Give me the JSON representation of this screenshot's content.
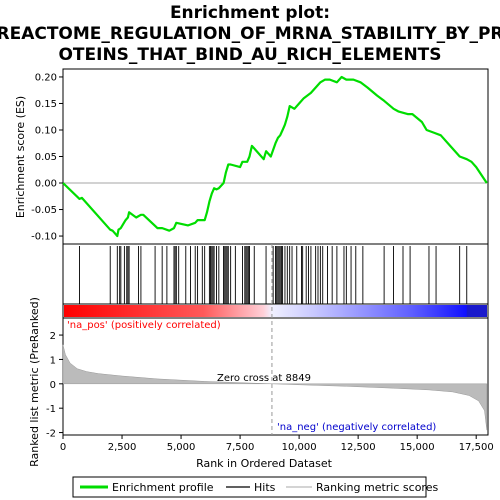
{
  "chart_data": {
    "type": "line",
    "title_lines": [
      "Enrichment plot:",
      "REACTOME_REGULATION_OF_MRNA_STABILITY_BY_PR",
      "OTEINS_THAT_BIND_AU_RICH_ELEMENTS"
    ],
    "xlabel": "Rank in Ordered Dataset",
    "ylabel_top": "Enrichment score (ES)",
    "ylabel_bottom": "Ranked list metric (PreRanked)",
    "xlim": [
      0,
      18000
    ],
    "ylim_es": [
      -0.115,
      0.215
    ],
    "ylim_metric": [
      -2.1,
      2.7
    ],
    "x_ticks": [
      0,
      2500,
      5000,
      7500,
      10000,
      12500,
      15000,
      17500
    ],
    "x_tick_labels": [
      "0",
      "2,500",
      "5,000",
      "7,500",
      "10,000",
      "12,500",
      "15,000",
      "17,500"
    ],
    "es_ticks": [
      -0.1,
      -0.05,
      0.0,
      0.05,
      0.1,
      0.15,
      0.2
    ],
    "es_tick_labels": [
      "-0.10",
      "-0.05",
      "0.00",
      "0.05",
      "0.10",
      "0.15",
      "0.20"
    ],
    "metric_ticks": [
      -2,
      -1,
      0,
      1,
      2
    ],
    "metric_tick_labels": [
      "-2",
      "-1",
      "0",
      "1",
      "2"
    ],
    "zero_cross_rank": 8849,
    "zero_cross_label": "Zero cross at 8849",
    "pos_label": "'na_pos' (positively correlated)",
    "neg_label": "'na_neg' (negatively correlated)",
    "legend": [
      "Enrichment profile",
      "Hits",
      "Ranking metric scores"
    ],
    "colors": {
      "profile": "#00dd00",
      "hits": "#000000",
      "metric_fill": "#bbbbbb",
      "pos_text": "#ff0000",
      "neg_text": "#0000cc",
      "zero_line": "#999999",
      "bar_pos": "#ff0000",
      "bar_neg": "#0000ff"
    },
    "series": [
      {
        "name": "Enrichment profile",
        "x": [
          0,
          700,
          800,
          2000,
          2100,
          2300,
          2350,
          2450,
          2650,
          2750,
          2800,
          3100,
          3300,
          3400,
          4000,
          4200,
          4500,
          4700,
          4800,
          5300,
          5600,
          5700,
          6000,
          6100,
          6200,
          6300,
          6400,
          6500,
          6600,
          6800,
          6900,
          7000,
          7100,
          7500,
          7600,
          7800,
          7900,
          8000,
          8100,
          8500,
          8600,
          8800,
          9000,
          9100,
          9200,
          9300,
          9400,
          9500,
          9600,
          9800,
          10000,
          10200,
          10500,
          10700,
          10900,
          11100,
          11300,
          11600,
          11800,
          12000,
          12300,
          12600,
          12900,
          13300,
          13600,
          14000,
          14200,
          14600,
          14800,
          15200,
          15400,
          15700,
          16000,
          16400,
          16800,
          17100,
          17300,
          17500,
          17950
        ],
        "es": [
          0.0,
          -0.03,
          -0.028,
          -0.088,
          -0.09,
          -0.1,
          -0.088,
          -0.085,
          -0.07,
          -0.065,
          -0.055,
          -0.065,
          -0.06,
          -0.06,
          -0.085,
          -0.085,
          -0.09,
          -0.085,
          -0.075,
          -0.08,
          -0.075,
          -0.07,
          -0.07,
          -0.055,
          -0.035,
          -0.02,
          -0.01,
          -0.012,
          -0.01,
          0.0,
          0.02,
          0.035,
          0.035,
          0.03,
          0.04,
          0.04,
          0.05,
          0.07,
          0.065,
          0.045,
          0.06,
          0.05,
          0.075,
          0.085,
          0.09,
          0.1,
          0.11,
          0.125,
          0.145,
          0.14,
          0.15,
          0.16,
          0.17,
          0.18,
          0.19,
          0.195,
          0.195,
          0.19,
          0.2,
          0.195,
          0.195,
          0.19,
          0.18,
          0.165,
          0.155,
          0.14,
          0.135,
          0.13,
          0.13,
          0.115,
          0.1,
          0.095,
          0.09,
          0.07,
          0.05,
          0.045,
          0.04,
          0.03,
          0.0
        ]
      }
    ],
    "hit_ranks": [
      700,
      2000,
      2300,
      2400,
      2450,
      2600,
      2700,
      2750,
      2800,
      3200,
      3300,
      3900,
      4200,
      4400,
      4700,
      4750,
      4800,
      4900,
      5200,
      5400,
      5600,
      5700,
      5900,
      6000,
      6200,
      6250,
      6300,
      6350,
      6400,
      6500,
      6600,
      6800,
      6850,
      6900,
      6950,
      7000,
      7100,
      7300,
      7600,
      7700,
      7750,
      7800,
      7850,
      7900,
      8100,
      8600,
      8900,
      9000,
      9050,
      9100,
      9150,
      9200,
      9250,
      9300,
      9400,
      9500,
      9600,
      9700,
      9900,
      10100,
      10150,
      10300,
      10400,
      10500,
      10700,
      10800,
      10900,
      11000,
      11200,
      11400,
      11600,
      11900,
      12000,
      12200,
      12400,
      12700,
      13600,
      14000,
      14400,
      14700,
      15500,
      15800,
      16800,
      17100
    ],
    "metric_curve": {
      "rank": [
        0,
        100,
        300,
        600,
        1000,
        1500,
        2500,
        4000,
        6000,
        8000,
        8849,
        10000,
        12000,
        14000,
        15500,
        16500,
        17200,
        17600,
        17850,
        17950
      ],
      "score": [
        1.6,
        1.2,
        0.85,
        0.62,
        0.5,
        0.42,
        0.32,
        0.2,
        0.1,
        0.03,
        0.0,
        -0.04,
        -0.1,
        -0.18,
        -0.25,
        -0.33,
        -0.48,
        -0.7,
        -1.1,
        -1.9
      ]
    }
  }
}
